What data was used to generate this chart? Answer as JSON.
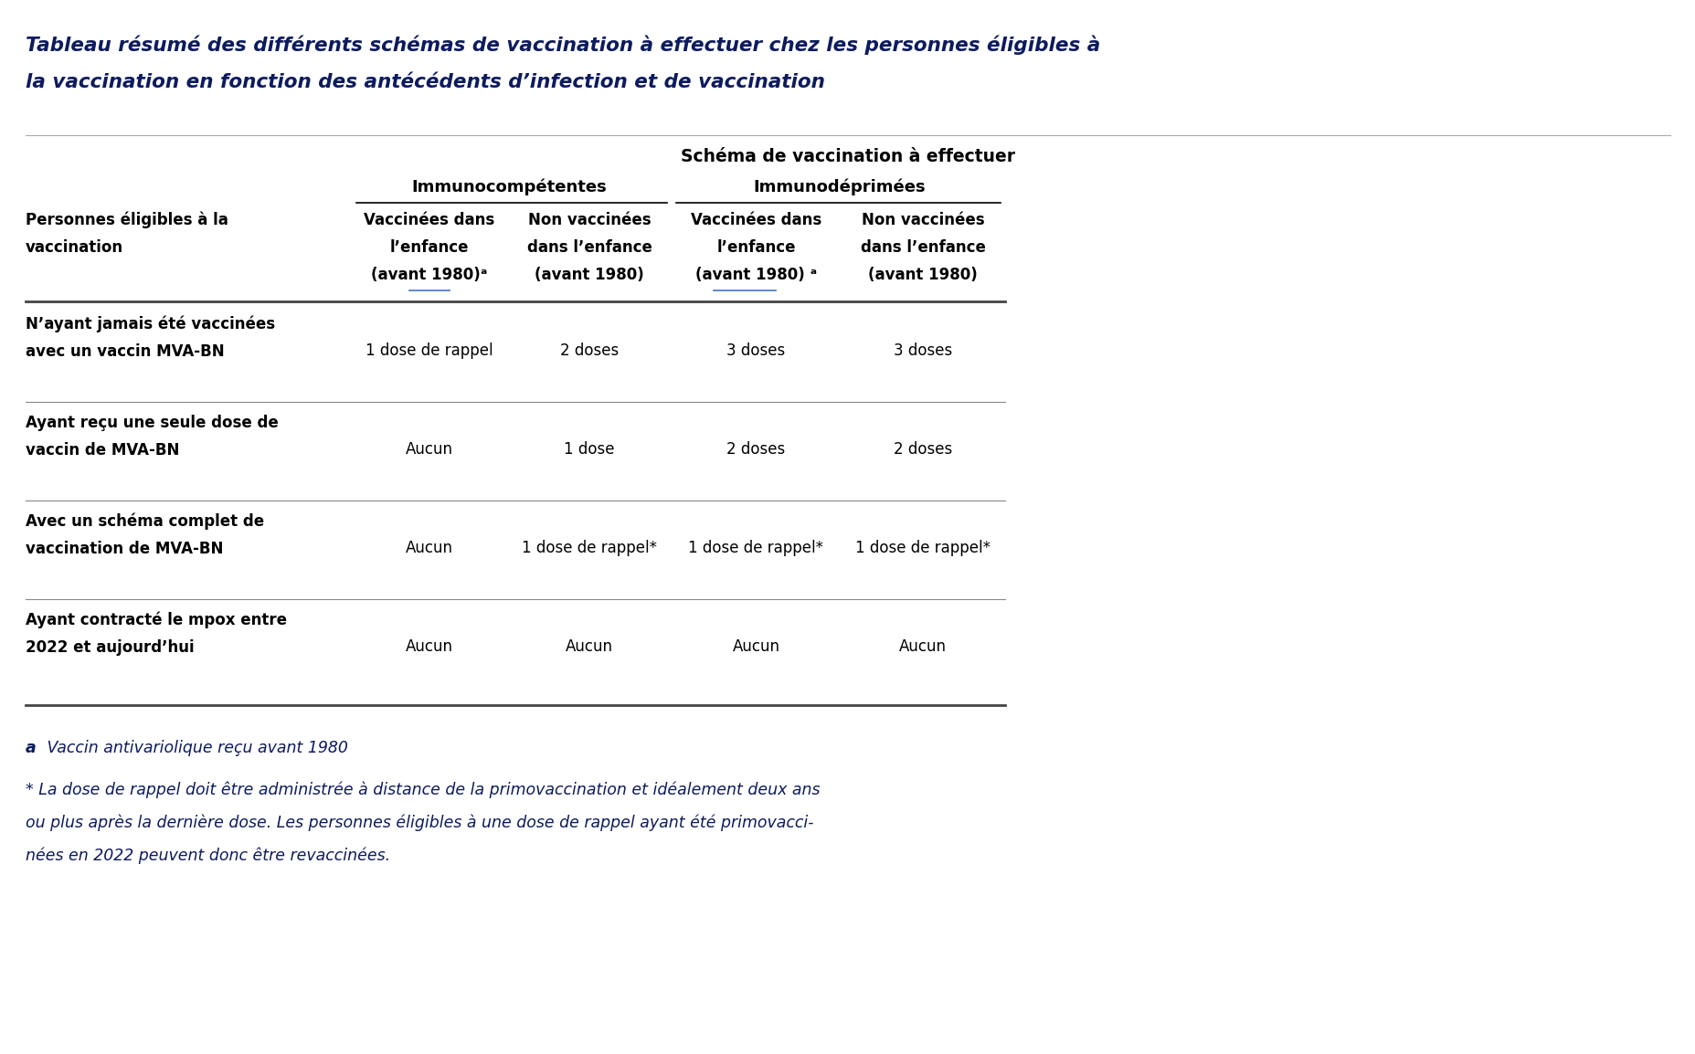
{
  "title_line1": "Tableau résumé des différents schémas de vaccination à effectuer chez les personnes éligibles à",
  "title_line2": "la vaccination en fonction des antécédents d’infection et de vaccination",
  "title_color": "#0d1b5e",
  "bg_color": "#ffffff",
  "header1": "Schéma de vaccination à effectuer",
  "header2a": "Immunocompétentes",
  "header2b": "Immunodéprimées",
  "col0_header_l1": "Personnes éligibles à la",
  "col0_header_l2": "vaccination",
  "col1_h1": "Vaccinées dans",
  "col1_h2": "l’enfance",
  "col1_h3": "(avant 1980)ᵃ",
  "col2_h1": "Non vaccinées",
  "col2_h2": "dans l’enfance",
  "col2_h3": "(avant 1980)",
  "col3_h1": "Vaccinées dans",
  "col3_h2": "l’enfance",
  "col3_h3": "(avant 1980) ᵃ",
  "col4_h1": "Non vaccinées",
  "col4_h2": "dans l’enfance",
  "col4_h3": "(avant 1980)",
  "rows": [
    {
      "label_l1": "N’ayant jamais été vaccinées",
      "label_l2": "avec un vaccin MVA-BN",
      "c1": "1 dose de rappel",
      "c2": "2 doses",
      "c3": "3 doses",
      "c4": "3 doses"
    },
    {
      "label_l1": "Ayant reçu une seule dose de",
      "label_l2": "vaccin de MVA-BN",
      "c1": "Aucun",
      "c2": "1 dose",
      "c3": "2 doses",
      "c4": "2 doses"
    },
    {
      "label_l1": "Avec un schéma complet de",
      "label_l2": "vaccination de MVA-BN",
      "c1": "Aucun",
      "c2": "1 dose de rappel*",
      "c3": "1 dose de rappel*",
      "c4": "1 dose de rappel*"
    },
    {
      "label_l1": "Ayant contracté le mpox entre",
      "label_l2": "2022 et aujourd’hui",
      "c1": "Aucun",
      "c2": "Aucun",
      "c3": "Aucun",
      "c4": "Aucun"
    }
  ],
  "footnote_a_bold": "a",
  "footnote_a_text": " Vaccin antivariolique reçu avant 1980",
  "footnote_star_l1": "* La dose de rappel doit être administrée à distance de la primovaccination et idéalement deux ans",
  "footnote_star_l2": "ou plus après la dernière dose. Les personnes éligibles à une dose de rappel ayant été primovacci-",
  "footnote_star_l3": "nées en 2022 peuvent donc être revaccinées.",
  "text_color": "#000000",
  "navy_color": "#0d1b5e",
  "blue_ul_color": "#4472C4",
  "table_line_color": "#444444",
  "sep_line_color": "#888888",
  "thin_line_color": "#aaaaaa"
}
